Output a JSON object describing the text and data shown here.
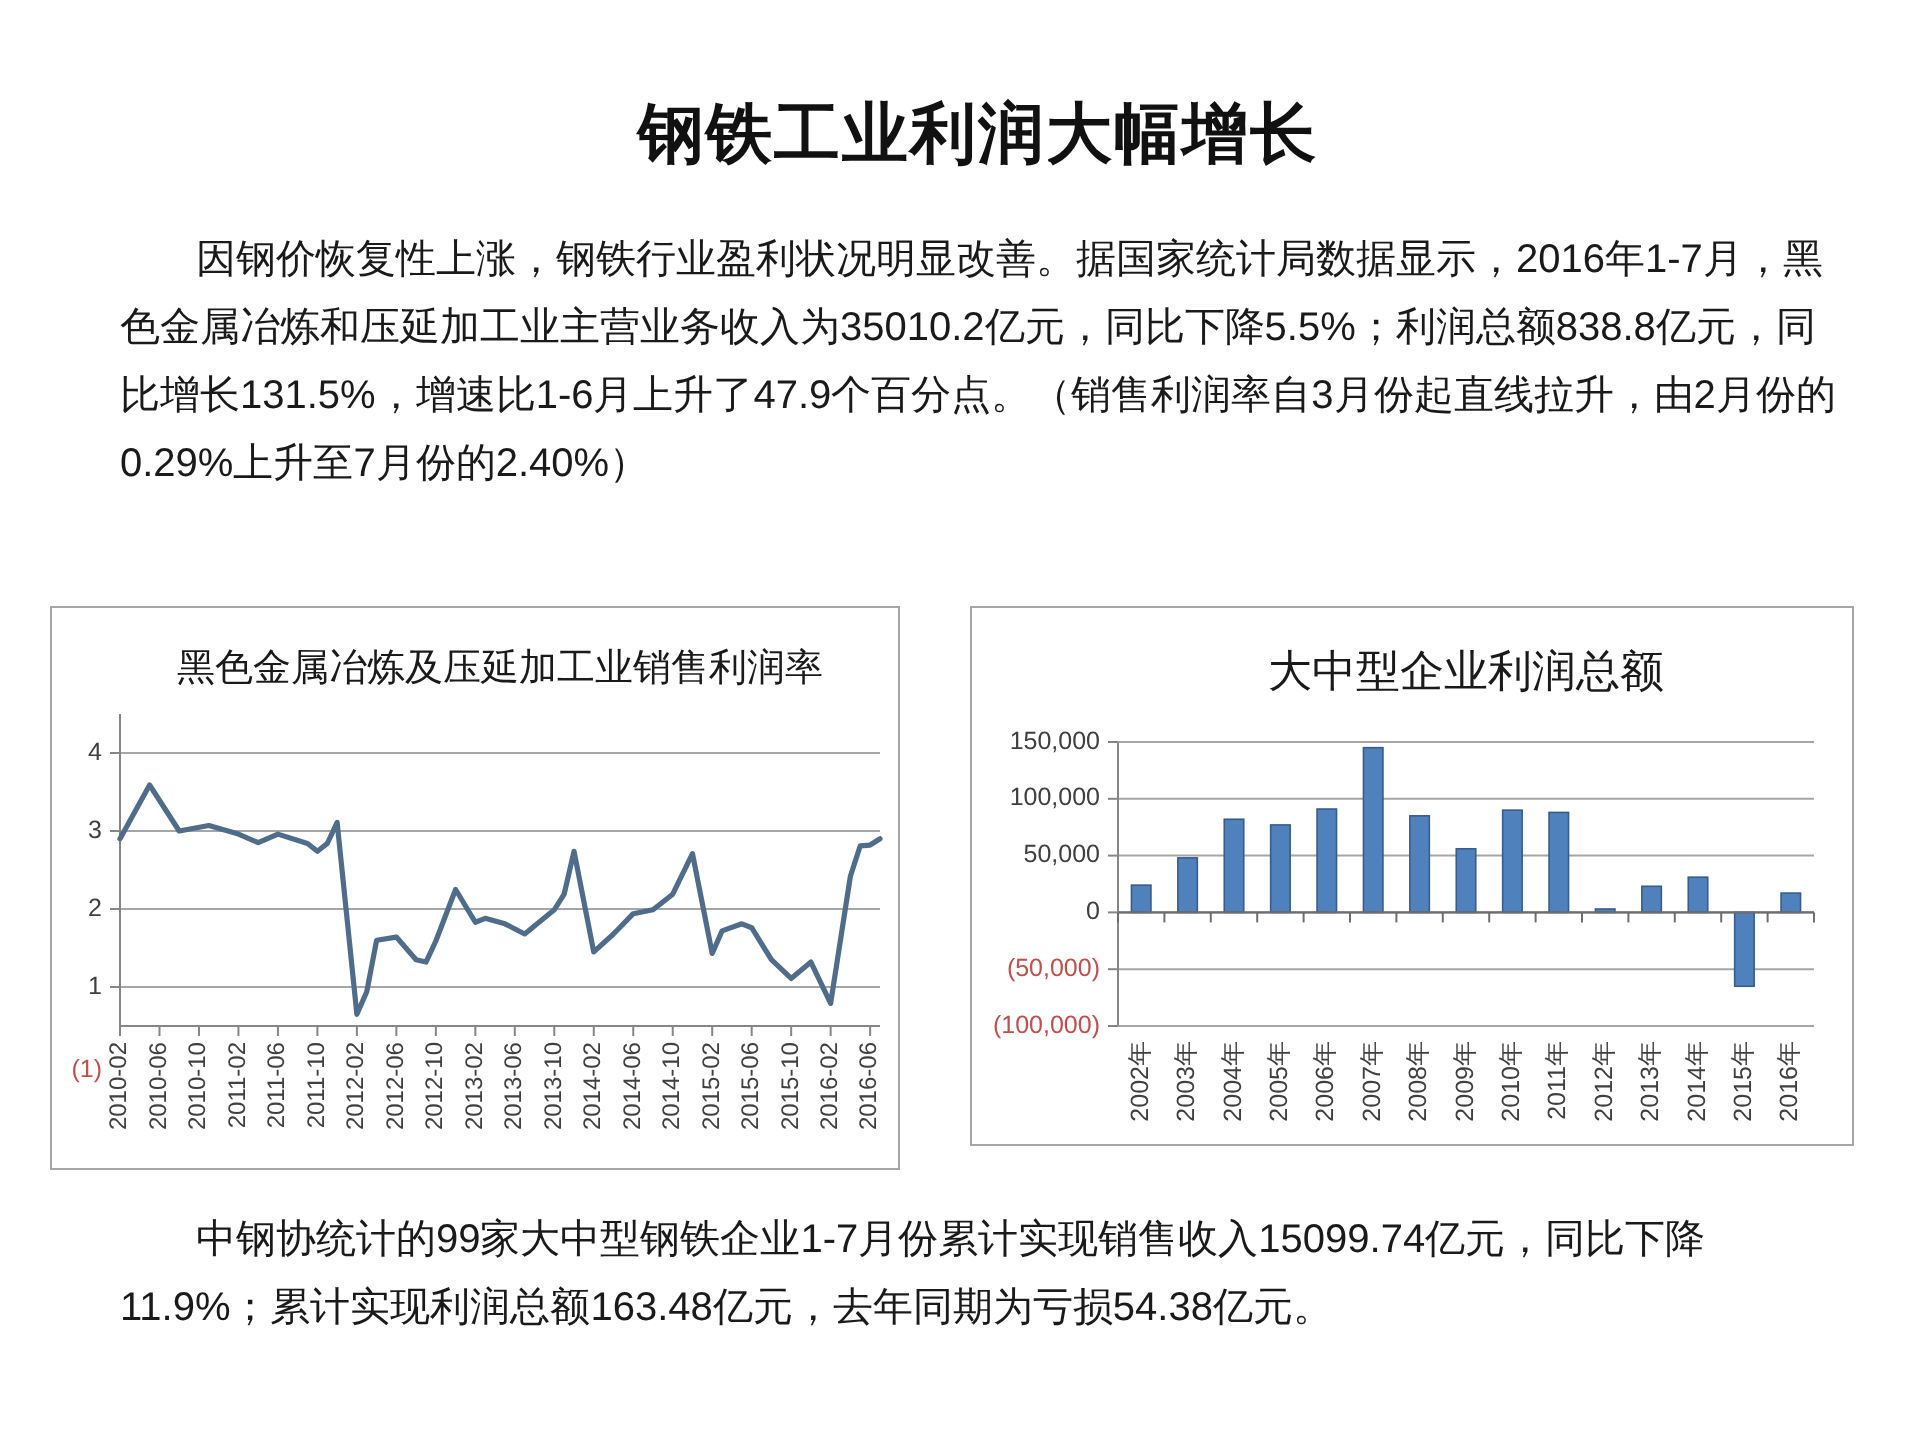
{
  "chart_data": [
    {
      "type": "other",
      "title": "钢铁工业利润大幅增长",
      "annotations": [
        "因钢价恢复性上涨，钢铁行业盈利状况明显改善。据国家统计局数据显示，2016年1-7月，黑色金属冶炼和压延加工业主营业务收入为35010.2亿元，同比下降5.5%；利润总额838.8亿元，同比增长131.5%，增速比1-6月上升了47.9个百分点。（销售利润率自3月份起直线拉升，由2月份的0.29%上升至7月份的2.40%）"
      ]
    },
    {
      "type": "line",
      "title": "黑色金属冶炼及压延加工业销售利润率",
      "x": [
        "2010-02",
        "2010-05",
        "2010-08",
        "2010-11",
        "2011-02",
        "2011-04",
        "2011-06",
        "2011-09",
        "2011-10",
        "2011-11",
        "2011-12",
        "2012-02",
        "2012-03",
        "2012-04",
        "2012-06",
        "2012-08",
        "2012-09",
        "2012-10",
        "2012-12",
        "2013-02",
        "2013-03",
        "2013-05",
        "2013-07",
        "2013-10",
        "2013-11",
        "2013-12",
        "2014-02",
        "2014-04",
        "2014-06",
        "2014-08",
        "2014-10",
        "2014-12",
        "2015-02",
        "2015-03",
        "2015-05",
        "2015-06",
        "2015-08",
        "2015-10",
        "2015-12",
        "2016-02",
        "2016-04",
        "2016-05",
        "2016-06",
        "2016-07"
      ],
      "values": [
        2.9,
        3.59,
        3.0,
        3.07,
        2.96,
        2.85,
        2.96,
        2.84,
        2.74,
        2.84,
        3.11,
        0.65,
        0.94,
        1.6,
        1.64,
        1.35,
        1.32,
        1.59,
        2.25,
        1.83,
        1.88,
        1.81,
        1.68,
        1.99,
        2.19,
        2.74,
        1.45,
        1.68,
        1.94,
        1.99,
        2.19,
        2.71,
        1.43,
        1.72,
        1.81,
        1.76,
        1.35,
        1.11,
        1.32,
        0.79,
        2.42,
        2.81,
        2.82,
        2.9
      ],
      "color": "#4f6d8a",
      "xlim": [
        "2010-02",
        "2016-07"
      ],
      "xticks": [
        "2010-02",
        "2010-06",
        "2010-10",
        "2011-02",
        "2011-06",
        "2011-10",
        "2012-02",
        "2012-06",
        "2012-10",
        "2013-02",
        "2013-06",
        "2013-10",
        "2014-02",
        "2014-06",
        "2014-10",
        "2015-02",
        "2015-06",
        "2015-10",
        "2016-02",
        "2016-06"
      ],
      "ylim": [
        0.5,
        4.5
      ],
      "yticks": [
        1,
        2,
        3,
        4
      ],
      "grid": "y",
      "annotations": [
        "(1)"
      ]
    },
    {
      "type": "bar",
      "title": "大中型企业利润总额",
      "categories": [
        "2002年",
        "2003年",
        "2004年",
        "2005年",
        "2006年",
        "2007年",
        "2008年",
        "2009年",
        "2010年",
        "2011年",
        "2012年",
        "2013年",
        "2014年",
        "2015年",
        "2016年"
      ],
      "values": [
        24000,
        48000,
        82000,
        77000,
        91000,
        145000,
        85000,
        56000,
        90000,
        88000,
        3000,
        23000,
        31000,
        -65000,
        17000
      ],
      "color": "#4f81bd",
      "ylim": [
        -100000,
        150000
      ],
      "yticks": [
        {
          "value": -100000,
          "label": "(100,000)"
        },
        {
          "value": -50000,
          "label": "(50,000)"
        },
        0,
        {
          "value": 50000,
          "label": "50,000"
        },
        {
          "value": 100000,
          "label": "100,000"
        },
        {
          "value": 150000,
          "label": "150,000"
        }
      ],
      "grid": "y"
    },
    {
      "type": "other",
      "annotations": [
        "中钢协统计的99家大中型钢铁企业1-7月份累计实现销售收入15099.74亿元，同比下降11.9%；累计实现利润总额163.48亿元，去年同期为亏损54.38亿元。"
      ]
    }
  ]
}
